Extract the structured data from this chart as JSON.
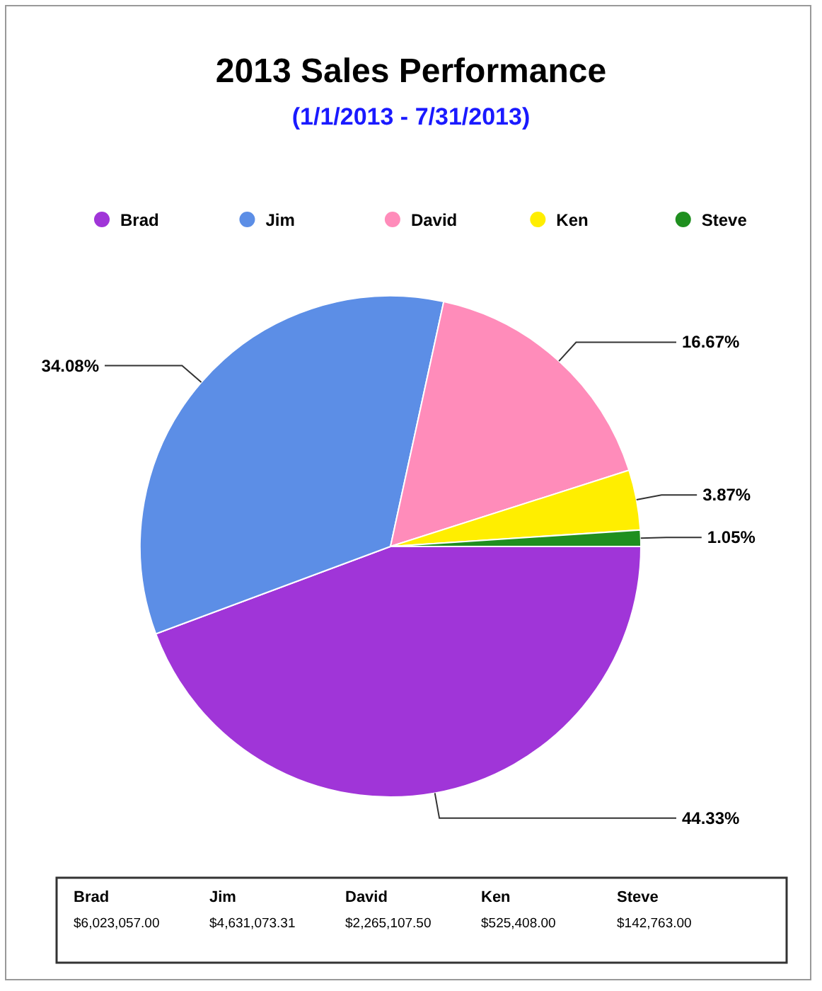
{
  "chart_data": {
    "type": "pie",
    "title": "2013 Sales Performance",
    "subtitle": "(1/1/2013 - 7/31/2013)",
    "categories": [
      "Brad",
      "Jim",
      "David",
      "Ken",
      "Steve"
    ],
    "values": [
      44.33,
      34.08,
      16.67,
      3.87,
      1.05
    ],
    "colors": [
      "#a035d8",
      "#5c8ee6",
      "#ff8cba",
      "#ffee00",
      "#1f8f1f"
    ],
    "value_labels": [
      "44.33%",
      "34.08%",
      "16.67%",
      "3.87%",
      "1.05%"
    ],
    "legend": "top",
    "annotations": [
      "$6,023,057.00",
      "$4,631,073.31",
      "$2,265,107.50",
      "$525,408.00",
      "$142,763.00"
    ]
  }
}
